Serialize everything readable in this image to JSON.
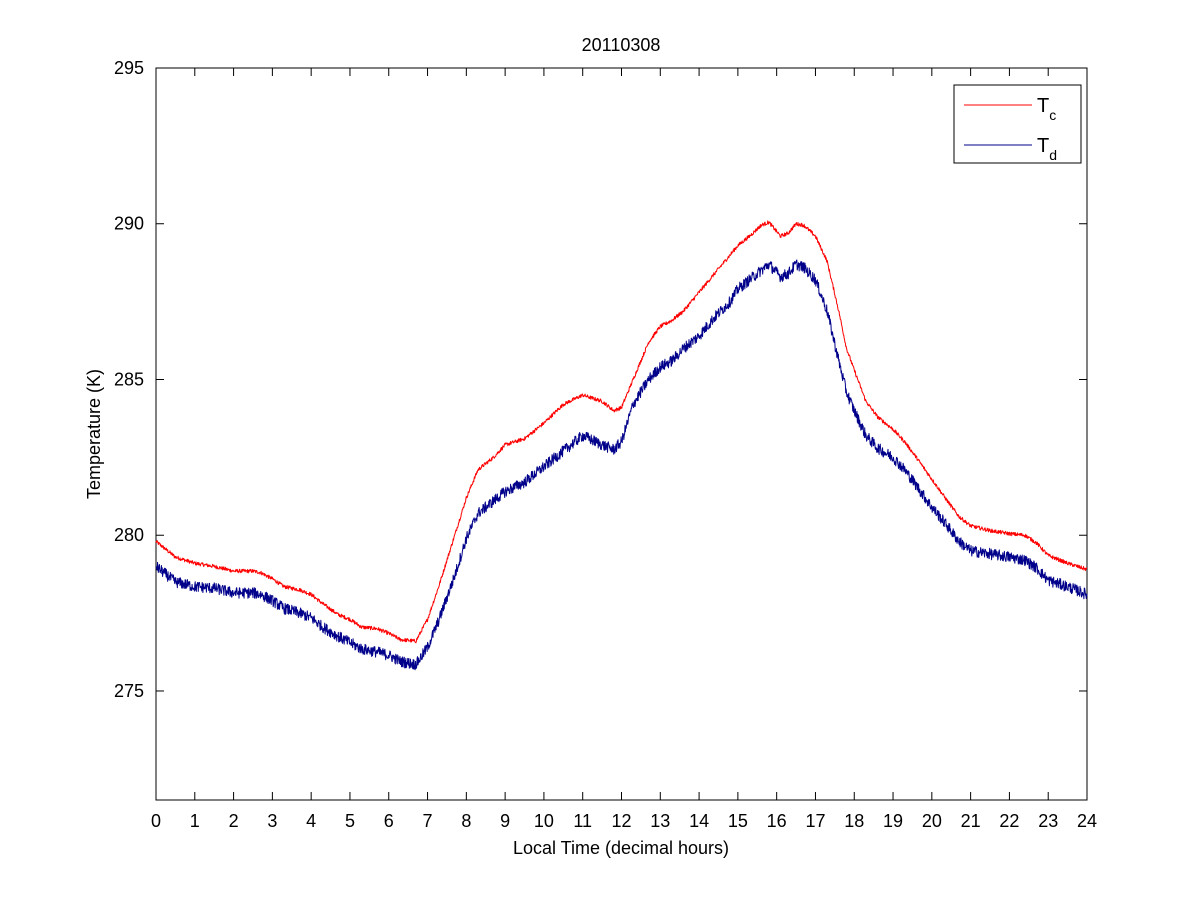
{
  "chart_data": {
    "type": "line",
    "title": "20110308",
    "xlabel": "Local Time (decimal hours)",
    "ylabel": "Temperature (K)",
    "xlim": [
      0,
      24
    ],
    "ylim": [
      271.5,
      295
    ],
    "xticks": [
      0,
      1,
      2,
      3,
      4,
      5,
      6,
      7,
      8,
      9,
      10,
      11,
      12,
      13,
      14,
      15,
      16,
      17,
      18,
      19,
      20,
      21,
      22,
      23,
      24
    ],
    "yticks": [
      275,
      280,
      285,
      290,
      295
    ],
    "grid": false,
    "legend_position": "top-right",
    "series": [
      {
        "name": "T",
        "subscript": "c",
        "color": "#ff0000",
        "noise": 0.06,
        "points": [
          [
            0,
            279.8
          ],
          [
            0.5,
            279.3
          ],
          [
            1,
            279.1
          ],
          [
            1.5,
            279.0
          ],
          [
            2,
            278.85
          ],
          [
            2.5,
            278.85
          ],
          [
            2.7,
            278.8
          ],
          [
            3,
            278.6
          ],
          [
            3.3,
            278.35
          ],
          [
            3.7,
            278.25
          ],
          [
            4,
            278.1
          ],
          [
            4.3,
            277.8
          ],
          [
            4.7,
            277.45
          ],
          [
            5,
            277.3
          ],
          [
            5.3,
            277.05
          ],
          [
            5.7,
            277.0
          ],
          [
            6,
            276.85
          ],
          [
            6.3,
            276.65
          ],
          [
            6.7,
            276.6
          ],
          [
            7,
            277.3
          ],
          [
            7.3,
            278.4
          ],
          [
            7.7,
            280.0
          ],
          [
            8,
            281.2
          ],
          [
            8.3,
            282.1
          ],
          [
            8.7,
            282.5
          ],
          [
            9,
            282.9
          ],
          [
            9.5,
            283.1
          ],
          [
            10,
            283.6
          ],
          [
            10.5,
            284.2
          ],
          [
            11,
            284.5
          ],
          [
            11.5,
            284.3
          ],
          [
            11.8,
            284.0
          ],
          [
            12,
            284.1
          ],
          [
            12.3,
            285.0
          ],
          [
            12.7,
            286.2
          ],
          [
            13,
            286.7
          ],
          [
            13.3,
            286.9
          ],
          [
            13.6,
            287.2
          ],
          [
            14,
            287.8
          ],
          [
            14.4,
            288.4
          ],
          [
            14.8,
            289.0
          ],
          [
            15,
            289.3
          ],
          [
            15.3,
            289.6
          ],
          [
            15.6,
            289.95
          ],
          [
            15.8,
            290.05
          ],
          [
            16.1,
            289.6
          ],
          [
            16.3,
            289.7
          ],
          [
            16.5,
            290.0
          ],
          [
            16.7,
            289.95
          ],
          [
            17,
            289.6
          ],
          [
            17.3,
            288.8
          ],
          [
            17.6,
            287.2
          ],
          [
            17.8,
            286.0
          ],
          [
            18,
            285.3
          ],
          [
            18.3,
            284.3
          ],
          [
            18.6,
            283.8
          ],
          [
            19,
            283.4
          ],
          [
            19.3,
            283.0
          ],
          [
            19.6,
            282.5
          ],
          [
            20,
            281.8
          ],
          [
            20.4,
            281.1
          ],
          [
            20.7,
            280.6
          ],
          [
            21,
            280.3
          ],
          [
            21.5,
            280.15
          ],
          [
            22,
            280.05
          ],
          [
            22.4,
            280.0
          ],
          [
            22.7,
            279.75
          ],
          [
            23,
            279.35
          ],
          [
            23.5,
            279.1
          ],
          [
            24,
            278.9
          ]
        ]
      },
      {
        "name": "T",
        "subscript": "d",
        "color": "#00008b",
        "noise": 0.18,
        "points": [
          [
            0,
            279.0
          ],
          [
            0.5,
            278.5
          ],
          [
            1,
            278.35
          ],
          [
            1.5,
            278.3
          ],
          [
            2,
            278.15
          ],
          [
            2.5,
            278.15
          ],
          [
            2.7,
            278.1
          ],
          [
            3,
            277.9
          ],
          [
            3.3,
            277.65
          ],
          [
            3.7,
            277.5
          ],
          [
            4,
            277.35
          ],
          [
            4.3,
            277.05
          ],
          [
            4.7,
            276.75
          ],
          [
            5,
            276.55
          ],
          [
            5.3,
            276.35
          ],
          [
            5.7,
            276.25
          ],
          [
            6,
            276.15
          ],
          [
            6.3,
            275.95
          ],
          [
            6.7,
            275.85
          ],
          [
            7,
            276.4
          ],
          [
            7.3,
            277.3
          ],
          [
            7.7,
            278.7
          ],
          [
            8,
            279.9
          ],
          [
            8.3,
            280.7
          ],
          [
            8.7,
            281.1
          ],
          [
            9,
            281.4
          ],
          [
            9.5,
            281.7
          ],
          [
            10,
            282.2
          ],
          [
            10.5,
            282.7
          ],
          [
            11,
            283.2
          ],
          [
            11.5,
            282.9
          ],
          [
            11.8,
            282.75
          ],
          [
            12,
            283.0
          ],
          [
            12.3,
            284.2
          ],
          [
            12.7,
            285.0
          ],
          [
            13,
            285.4
          ],
          [
            13.3,
            285.6
          ],
          [
            13.6,
            286.0
          ],
          [
            14,
            286.4
          ],
          [
            14.4,
            287.0
          ],
          [
            14.8,
            287.5
          ],
          [
            15,
            287.9
          ],
          [
            15.3,
            288.2
          ],
          [
            15.6,
            288.5
          ],
          [
            15.8,
            288.7
          ],
          [
            16.1,
            288.3
          ],
          [
            16.3,
            288.4
          ],
          [
            16.5,
            288.7
          ],
          [
            16.7,
            288.6
          ],
          [
            17,
            288.2
          ],
          [
            17.3,
            287.2
          ],
          [
            17.6,
            285.6
          ],
          [
            17.8,
            284.6
          ],
          [
            18,
            284.0
          ],
          [
            18.3,
            283.2
          ],
          [
            18.6,
            282.8
          ],
          [
            19,
            282.5
          ],
          [
            19.3,
            282.1
          ],
          [
            19.6,
            281.6
          ],
          [
            20,
            280.9
          ],
          [
            20.4,
            280.3
          ],
          [
            20.7,
            279.8
          ],
          [
            21,
            279.5
          ],
          [
            21.5,
            279.4
          ],
          [
            22,
            279.3
          ],
          [
            22.4,
            279.2
          ],
          [
            22.7,
            278.95
          ],
          [
            23,
            278.55
          ],
          [
            23.5,
            278.35
          ],
          [
            24,
            278.1
          ]
        ]
      }
    ]
  }
}
